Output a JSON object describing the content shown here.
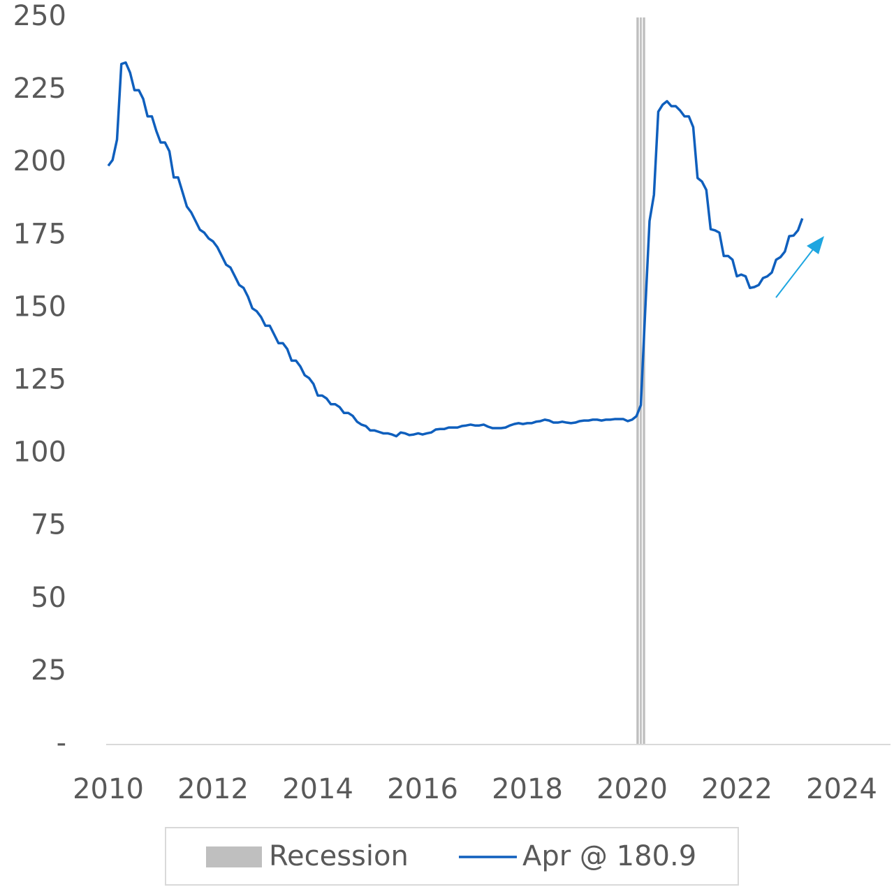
{
  "chart_data": {
    "type": "line",
    "x": [
      2010,
      2010.083,
      2010.167,
      2010.25,
      2010.333,
      2010.417,
      2010.5,
      2010.583,
      2010.667,
      2010.75,
      2010.833,
      2010.917,
      2011,
      2011.083,
      2011.167,
      2011.25,
      2011.333,
      2011.417,
      2011.5,
      2011.583,
      2011.667,
      2011.75,
      2011.833,
      2011.917,
      2012,
      2012.083,
      2012.167,
      2012.25,
      2012.333,
      2012.417,
      2012.5,
      2012.583,
      2012.667,
      2012.75,
      2012.833,
      2012.917,
      2013,
      2013.083,
      2013.167,
      2013.25,
      2013.333,
      2013.417,
      2013.5,
      2013.583,
      2013.667,
      2013.75,
      2013.833,
      2013.917,
      2014,
      2014.083,
      2014.167,
      2014.25,
      2014.333,
      2014.417,
      2014.5,
      2014.583,
      2014.667,
      2014.75,
      2014.833,
      2014.917,
      2015,
      2015.083,
      2015.167,
      2015.25,
      2015.333,
      2015.417,
      2015.5,
      2015.583,
      2015.667,
      2015.75,
      2015.833,
      2015.917,
      2016,
      2016.083,
      2016.167,
      2016.25,
      2016.333,
      2016.417,
      2016.5,
      2016.583,
      2016.667,
      2016.75,
      2016.833,
      2016.917,
      2017,
      2017.083,
      2017.167,
      2017.25,
      2017.333,
      2017.417,
      2017.5,
      2017.583,
      2017.667,
      2017.75,
      2017.833,
      2017.917,
      2018,
      2018.083,
      2018.167,
      2018.25,
      2018.333,
      2018.417,
      2018.5,
      2018.583,
      2018.667,
      2018.75,
      2018.833,
      2018.917,
      2019,
      2019.083,
      2019.167,
      2019.25,
      2019.333,
      2019.417,
      2019.5,
      2019.583,
      2019.667,
      2019.75,
      2019.833,
      2019.917,
      2020,
      2020.083,
      2020.167,
      2020.25,
      2020.333,
      2020.417,
      2020.5,
      2020.583,
      2020.667,
      2020.75,
      2020.833,
      2020.917,
      2021,
      2021.083,
      2021.167,
      2021.25,
      2021.333,
      2021.417,
      2021.5,
      2021.583,
      2021.667,
      2021.75,
      2021.833,
      2021.917,
      2022,
      2022.083,
      2022.167,
      2022.25,
      2022.333,
      2022.417,
      2022.5,
      2022.583,
      2022.667,
      2022.75,
      2022.833,
      2022.917,
      2023,
      2023.083,
      2023.167,
      2023.25
    ],
    "series": [
      {
        "name": "Apr @ 180.9",
        "color": "#0f5fbd",
        "values": [
          199,
          201,
          208,
          234,
          234.5,
          231,
          225,
          225,
          222,
          216,
          216,
          211,
          207,
          207,
          204,
          195,
          195,
          190,
          185,
          183,
          180,
          177,
          176,
          174,
          173,
          171,
          168,
          165,
          164,
          161,
          158,
          157,
          154,
          150,
          149,
          147,
          144,
          144,
          141,
          138,
          138,
          136,
          132,
          132,
          130,
          127,
          126,
          124,
          120,
          120,
          119,
          117,
          117,
          116,
          114,
          114,
          113,
          111,
          110,
          109.5,
          108,
          108,
          107.5,
          107,
          107,
          106.6,
          106,
          107.3,
          107,
          106.4,
          106.6,
          107,
          106.6,
          107,
          107.3,
          108.3,
          108.5,
          108.5,
          109,
          109,
          109,
          109.5,
          109.7,
          110,
          109.7,
          109.7,
          110,
          109.3,
          108.8,
          108.8,
          108.8,
          109,
          109.7,
          110.2,
          110.5,
          110.2,
          110.5,
          110.5,
          111,
          111.2,
          111.7,
          111.4,
          110.7,
          110.7,
          111,
          110.7,
          110.5,
          110.7,
          111.2,
          111.4,
          111.4,
          111.7,
          111.7,
          111.4,
          111.7,
          111.7,
          111.9,
          111.9,
          111.9,
          111.2,
          111.7,
          112.9,
          116.7,
          149,
          180,
          189,
          217.6,
          220,
          221.2,
          219.5,
          219.5,
          218,
          216,
          216,
          212.3,
          194.8,
          193.6,
          190.7,
          177.2,
          176.8,
          176,
          168,
          168,
          166.7,
          161,
          161.6,
          161,
          157,
          157.3,
          158,
          160.4,
          161,
          162.3,
          166.7,
          167.6,
          169.5,
          174.8,
          175,
          176.8,
          180.9
        ]
      }
    ],
    "recession": {
      "name": "Recession",
      "color": "#bfbfbf",
      "start": 2020.083,
      "end": 2020.25
    },
    "xlim": [
      2010,
      2025
    ],
    "xticks": [
      2010,
      2012,
      2014,
      2016,
      2018,
      2020,
      2022,
      2024
    ],
    "ylim": [
      0,
      250
    ],
    "yticks": [
      {
        "value": 0,
        "label": "-"
      },
      25,
      50,
      75,
      100,
      125,
      150,
      175,
      200,
      225,
      250
    ]
  }
}
